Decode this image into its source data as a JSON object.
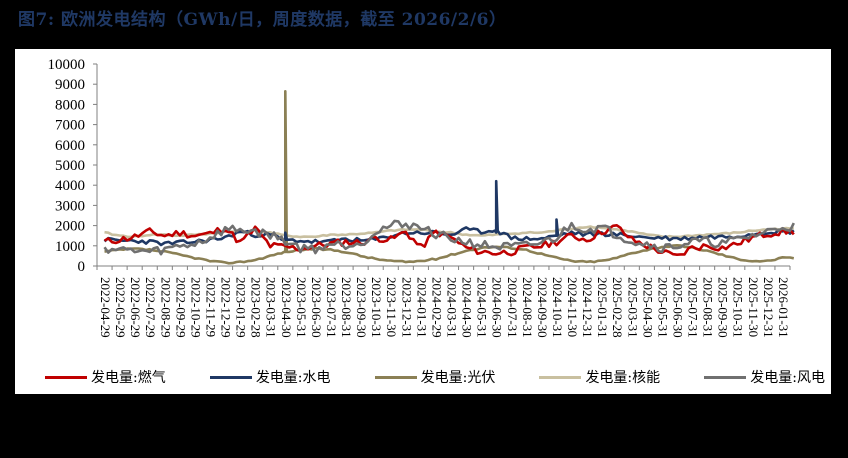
{
  "header": {
    "title": "图7:  欧洲发电结构（GWh/日，周度数据，截至 2026/2/6）"
  },
  "colors": {
    "title": "#1f3864",
    "gas": "#c00000",
    "hydro": "#1f3864",
    "solar": "#8b8055",
    "nuclear": "#c9c0a0",
    "wind": "#707070"
  },
  "chart_data": {
    "type": "line",
    "title": "欧洲发电结构（GWh/日，周度数据，截至 2026/2/6）",
    "xlabel": "",
    "ylabel": "GWh/日",
    "ylim": [
      0,
      10000
    ],
    "yticks": [
      0,
      1000,
      2000,
      3000,
      4000,
      5000,
      6000,
      7000,
      8000,
      9000,
      10000
    ],
    "grid": false,
    "legend_position": "bottom",
    "categories": [
      "2022-04-29",
      "2022-05-29",
      "2022-06-29",
      "2022-07-29",
      "2022-08-29",
      "2022-09-29",
      "2022-10-29",
      "2022-11-29",
      "2022-12-29",
      "2023-01-29",
      "2023-02-28",
      "2023-03-31",
      "2023-04-30",
      "2023-05-31",
      "2023-06-30",
      "2023-07-31",
      "2023-08-31",
      "2023-09-30",
      "2023-10-31",
      "2023-11-30",
      "2023-12-31",
      "2024-01-31",
      "2024-02-29",
      "2024-03-31",
      "2024-04-30",
      "2024-05-31",
      "2024-06-30",
      "2024-07-31",
      "2024-08-31",
      "2024-09-30",
      "2024-10-31",
      "2024-11-30",
      "2024-12-31",
      "2025-01-31",
      "2025-02-28",
      "2025-03-31",
      "2025-04-30",
      "2025-05-31",
      "2025-06-30",
      "2025-07-31",
      "2025-08-31",
      "2025-09-30",
      "2025-10-31",
      "2025-11-30",
      "2025-12-31",
      "2026-01-31"
    ],
    "series": [
      {
        "name": "发电量:燃气",
        "color": "#c00000",
        "values": [
          1200,
          1300,
          1450,
          1700,
          1500,
          1650,
          1500,
          1600,
          1900,
          1150,
          1850,
          1000,
          950,
          850,
          1000,
          1100,
          1200,
          1150,
          1400,
          1300,
          1700,
          900,
          1700,
          1400,
          900,
          700,
          650,
          700,
          900,
          1000,
          1200,
          1500,
          1300,
          1700,
          1950,
          1300,
          1000,
          700,
          450,
          900,
          1000,
          900,
          1100,
          1400,
          1600,
          1700
        ]
      },
      {
        "name": "发电量:水电",
        "color": "#1f3864",
        "values": [
          1300,
          1250,
          1250,
          1200,
          1100,
          1150,
          1200,
          1300,
          1400,
          1700,
          1550,
          1550,
          1300,
          1250,
          1200,
          1200,
          1350,
          1250,
          1300,
          1500,
          1650,
          1650,
          1650,
          1550,
          1800,
          1700,
          1750,
          1400,
          1350,
          1350,
          1500,
          1650,
          1550,
          1600,
          1550,
          1500,
          1400,
          1400,
          1350,
          1400,
          1450,
          1450,
          1500,
          1600,
          1700,
          1700
        ],
        "spikes": [
          {
            "date": "2023-04-30",
            "value": 1650
          },
          {
            "date": "2024-06-30",
            "value": 4200
          },
          {
            "date": "2024-10-31",
            "value": 2300
          }
        ]
      },
      {
        "name": "发电量:光伏",
        "color": "#8b8055",
        "values": [
          700,
          800,
          850,
          800,
          700,
          550,
          400,
          250,
          150,
          200,
          300,
          500,
          700,
          800,
          850,
          800,
          700,
          500,
          350,
          250,
          200,
          250,
          350,
          550,
          750,
          900,
          950,
          900,
          800,
          600,
          400,
          250,
          200,
          250,
          400,
          650,
          800,
          950,
          1000,
          900,
          750,
          550,
          350,
          250,
          250,
          400
        ],
        "spikes": [
          {
            "date": "2023-04-30",
            "value": 8650
          }
        ]
      },
      {
        "name": "发电量:核能",
        "color": "#c9c0a0",
        "values": [
          1650,
          1500,
          1450,
          1550,
          1550,
          1500,
          1550,
          1600,
          1700,
          1700,
          1750,
          1650,
          1500,
          1450,
          1450,
          1550,
          1550,
          1600,
          1650,
          1750,
          1800,
          1800,
          1700,
          1650,
          1550,
          1500,
          1550,
          1600,
          1650,
          1650,
          1750,
          1850,
          1950,
          1900,
          1800,
          1700,
          1550,
          1450,
          1450,
          1500,
          1550,
          1600,
          1650,
          1750,
          1800,
          1850
        ]
      },
      {
        "name": "发电量:风电",
        "color": "#707070",
        "values": [
          900,
          800,
          750,
          700,
          800,
          1000,
          1100,
          1400,
          1800,
          1800,
          1700,
          1550,
          1250,
          900,
          850,
          1100,
          1050,
          1150,
          1700,
          2000,
          2100,
          1900,
          1600,
          1350,
          1200,
          1050,
          950,
          950,
          1000,
          1150,
          1400,
          2050,
          1800,
          1900,
          1550,
          1250,
          1100,
          900,
          1000,
          1200,
          1200,
          1100,
          1300,
          1500,
          1700,
          1950
        ]
      }
    ]
  },
  "legend": [
    {
      "label": "发电量:燃气",
      "color": "#c00000"
    },
    {
      "label": "发电量:水电",
      "color": "#1f3864"
    },
    {
      "label": "发电量:光伏",
      "color": "#8b8055"
    },
    {
      "label": "发电量:核能",
      "color": "#c9c0a0"
    },
    {
      "label": "发电量:风电",
      "color": "#707070"
    }
  ]
}
